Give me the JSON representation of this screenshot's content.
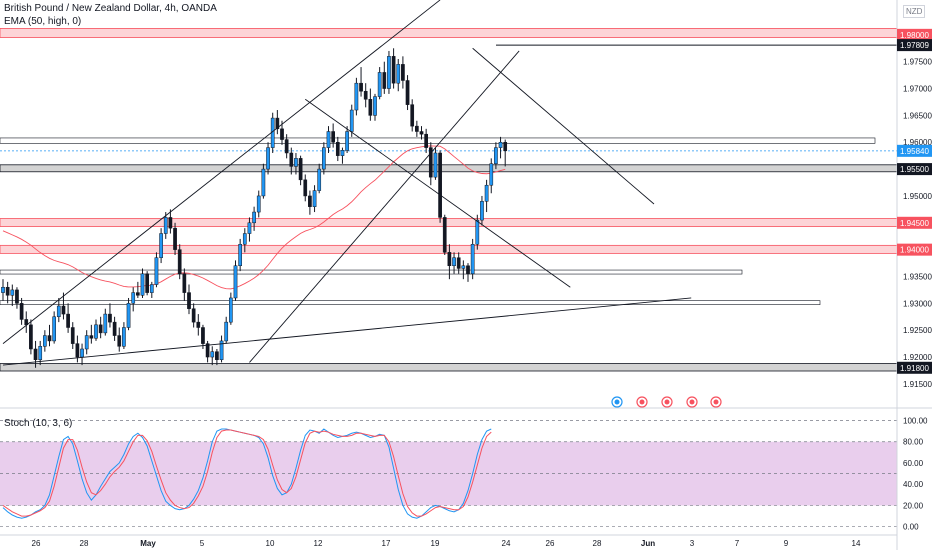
{
  "header": {
    "symbol_line": "British Pound / New Zealand Dollar, 4h, OANDA",
    "ema_label": "EMA (50, high, 0)",
    "currency": "NZD"
  },
  "stoch_label": "Stoch (10, 3, 6)",
  "chart_data": [
    {
      "type": "candlestick",
      "title": "British Pound / New Zealand Dollar, 4h, OANDA",
      "indicator": "EMA (50, high, 0)",
      "ylim": [
        1.912,
        1.985
      ],
      "yticks": [
        1.915,
        1.92,
        1.925,
        1.93,
        1.935,
        1.94,
        1.945,
        1.95,
        1.955,
        1.96,
        1.965,
        1.97,
        1.975,
        1.98
      ],
      "yticks_labels": [
        "1.91500",
        "1.92000",
        "1.92500",
        "1.93000",
        "1.93500",
        "1.94000",
        "1.94500",
        "1.95000",
        "1.95500",
        "1.96000",
        "1.96500",
        "1.97000",
        "1.97500",
        "1.98000"
      ],
      "x_labels": [
        "26",
        "28",
        "May",
        "5",
        "10",
        "12",
        "17",
        "19",
        "24",
        "26",
        "28",
        "Jun",
        "3",
        "7",
        "9",
        "14"
      ],
      "price_labels": [
        {
          "value": 1.98,
          "text": "1.98000",
          "color": "#f7525f"
        },
        {
          "value": 1.97809,
          "text": "1.97809",
          "color": "#131722"
        },
        {
          "value": 1.9584,
          "text": "1.95840",
          "color": "#2196f3"
        },
        {
          "value": 1.955,
          "text": "1.95500",
          "color": "#131722"
        },
        {
          "value": 1.945,
          "text": "1.94500",
          "color": "#f7525f"
        },
        {
          "value": 1.94,
          "text": "1.94000",
          "color": "#f7525f"
        },
        {
          "value": 1.918,
          "text": "1.91800",
          "color": "#131722"
        }
      ],
      "zones": [
        {
          "from": 1.9795,
          "to": 1.9812,
          "kind": "resistance"
        },
        {
          "from": 1.9545,
          "to": 1.9558,
          "kind": "support"
        },
        {
          "from": 1.9443,
          "to": 1.9458,
          "kind": "resistance"
        },
        {
          "from": 1.9393,
          "to": 1.9408,
          "kind": "resistance"
        },
        {
          "from": 1.9174,
          "to": 1.9188,
          "kind": "support"
        }
      ],
      "boxes": [
        {
          "from": 1.9598,
          "to": 1.9608
        },
        {
          "from": 1.9355,
          "to": 1.9362
        },
        {
          "from": 1.9298,
          "to": 1.9305
        }
      ],
      "candles": [
        {
          "o": 1.932,
          "h": 1.9345,
          "l": 1.9305,
          "c": 1.933
        },
        {
          "o": 1.933,
          "h": 1.934,
          "l": 1.93,
          "c": 1.9315
        },
        {
          "o": 1.9315,
          "h": 1.9335,
          "l": 1.9295,
          "c": 1.9325
        },
        {
          "o": 1.9325,
          "h": 1.933,
          "l": 1.929,
          "c": 1.93
        },
        {
          "o": 1.93,
          "h": 1.931,
          "l": 1.926,
          "c": 1.927
        },
        {
          "o": 1.927,
          "h": 1.9285,
          "l": 1.9245,
          "c": 1.926
        },
        {
          "o": 1.926,
          "h": 1.927,
          "l": 1.9205,
          "c": 1.9215
        },
        {
          "o": 1.9215,
          "h": 1.923,
          "l": 1.918,
          "c": 1.9195
        },
        {
          "o": 1.9195,
          "h": 1.923,
          "l": 1.9185,
          "c": 1.922
        },
        {
          "o": 1.922,
          "h": 1.925,
          "l": 1.921,
          "c": 1.924
        },
        {
          "o": 1.924,
          "h": 1.926,
          "l": 1.922,
          "c": 1.923
        },
        {
          "o": 1.923,
          "h": 1.9285,
          "l": 1.9225,
          "c": 1.9275
        },
        {
          "o": 1.9275,
          "h": 1.931,
          "l": 1.9265,
          "c": 1.9295
        },
        {
          "o": 1.9295,
          "h": 1.932,
          "l": 1.927,
          "c": 1.928
        },
        {
          "o": 1.928,
          "h": 1.93,
          "l": 1.9245,
          "c": 1.9255
        },
        {
          "o": 1.9255,
          "h": 1.9265,
          "l": 1.9215,
          "c": 1.9225
        },
        {
          "o": 1.9225,
          "h": 1.924,
          "l": 1.919,
          "c": 1.92
        },
        {
          "o": 1.92,
          "h": 1.9225,
          "l": 1.9185,
          "c": 1.9215
        },
        {
          "o": 1.9215,
          "h": 1.925,
          "l": 1.9205,
          "c": 1.924
        },
        {
          "o": 1.924,
          "h": 1.926,
          "l": 1.9225,
          "c": 1.9235
        },
        {
          "o": 1.9235,
          "h": 1.927,
          "l": 1.923,
          "c": 1.926
        },
        {
          "o": 1.926,
          "h": 1.9275,
          "l": 1.9235,
          "c": 1.9245
        },
        {
          "o": 1.9245,
          "h": 1.929,
          "l": 1.924,
          "c": 1.928
        },
        {
          "o": 1.928,
          "h": 1.93,
          "l": 1.9255,
          "c": 1.9265
        },
        {
          "o": 1.9265,
          "h": 1.9275,
          "l": 1.923,
          "c": 1.924
        },
        {
          "o": 1.924,
          "h": 1.9255,
          "l": 1.921,
          "c": 1.922
        },
        {
          "o": 1.922,
          "h": 1.9265,
          "l": 1.9215,
          "c": 1.9255
        },
        {
          "o": 1.9255,
          "h": 1.931,
          "l": 1.925,
          "c": 1.93
        },
        {
          "o": 1.93,
          "h": 1.933,
          "l": 1.9285,
          "c": 1.932
        },
        {
          "o": 1.932,
          "h": 1.934,
          "l": 1.931,
          "c": 1.9315
        },
        {
          "o": 1.9315,
          "h": 1.9365,
          "l": 1.931,
          "c": 1.9355
        },
        {
          "o": 1.9355,
          "h": 1.936,
          "l": 1.9315,
          "c": 1.932
        },
        {
          "o": 1.932,
          "h": 1.934,
          "l": 1.931,
          "c": 1.9335
        },
        {
          "o": 1.9335,
          "h": 1.9395,
          "l": 1.933,
          "c": 1.9385
        },
        {
          "o": 1.9385,
          "h": 1.944,
          "l": 1.9375,
          "c": 1.943
        },
        {
          "o": 1.943,
          "h": 1.947,
          "l": 1.942,
          "c": 1.946
        },
        {
          "o": 1.946,
          "h": 1.9475,
          "l": 1.943,
          "c": 1.944
        },
        {
          "o": 1.944,
          "h": 1.945,
          "l": 1.939,
          "c": 1.94
        },
        {
          "o": 1.94,
          "h": 1.941,
          "l": 1.9345,
          "c": 1.9355
        },
        {
          "o": 1.9355,
          "h": 1.9365,
          "l": 1.9305,
          "c": 1.932
        },
        {
          "o": 1.932,
          "h": 1.9335,
          "l": 1.928,
          "c": 1.929
        },
        {
          "o": 1.929,
          "h": 1.93,
          "l": 1.9255,
          "c": 1.9265
        },
        {
          "o": 1.9265,
          "h": 1.928,
          "l": 1.924,
          "c": 1.9255
        },
        {
          "o": 1.9255,
          "h": 1.926,
          "l": 1.9215,
          "c": 1.9225
        },
        {
          "o": 1.9225,
          "h": 1.923,
          "l": 1.919,
          "c": 1.92
        },
        {
          "o": 1.92,
          "h": 1.922,
          "l": 1.9185,
          "c": 1.921
        },
        {
          "o": 1.921,
          "h": 1.9215,
          "l": 1.9185,
          "c": 1.9195
        },
        {
          "o": 1.9195,
          "h": 1.924,
          "l": 1.919,
          "c": 1.923
        },
        {
          "o": 1.923,
          "h": 1.9275,
          "l": 1.9225,
          "c": 1.9265
        },
        {
          "o": 1.9265,
          "h": 1.932,
          "l": 1.926,
          "c": 1.931
        },
        {
          "o": 1.931,
          "h": 1.938,
          "l": 1.9305,
          "c": 1.937
        },
        {
          "o": 1.937,
          "h": 1.942,
          "l": 1.936,
          "c": 1.941
        },
        {
          "o": 1.941,
          "h": 1.944,
          "l": 1.9395,
          "c": 1.943
        },
        {
          "o": 1.943,
          "h": 1.946,
          "l": 1.9415,
          "c": 1.945
        },
        {
          "o": 1.945,
          "h": 1.948,
          "l": 1.9435,
          "c": 1.947
        },
        {
          "o": 1.947,
          "h": 1.951,
          "l": 1.946,
          "c": 1.95
        },
        {
          "o": 1.95,
          "h": 1.956,
          "l": 1.9495,
          "c": 1.955
        },
        {
          "o": 1.955,
          "h": 1.96,
          "l": 1.954,
          "c": 1.959
        },
        {
          "o": 1.959,
          "h": 1.9655,
          "l": 1.958,
          "c": 1.9645
        },
        {
          "o": 1.9645,
          "h": 1.966,
          "l": 1.9615,
          "c": 1.9625
        },
        {
          "o": 1.9625,
          "h": 1.964,
          "l": 1.9595,
          "c": 1.9605
        },
        {
          "o": 1.9605,
          "h": 1.9615,
          "l": 1.957,
          "c": 1.958
        },
        {
          "o": 1.958,
          "h": 1.959,
          "l": 1.954,
          "c": 1.9555
        },
        {
          "o": 1.9555,
          "h": 1.958,
          "l": 1.954,
          "c": 1.957
        },
        {
          "o": 1.957,
          "h": 1.9575,
          "l": 1.952,
          "c": 1.953
        },
        {
          "o": 1.953,
          "h": 1.954,
          "l": 1.949,
          "c": 1.95
        },
        {
          "o": 1.95,
          "h": 1.951,
          "l": 1.9465,
          "c": 1.948
        },
        {
          "o": 1.948,
          "h": 1.952,
          "l": 1.947,
          "c": 1.951
        },
        {
          "o": 1.951,
          "h": 1.956,
          "l": 1.9505,
          "c": 1.955
        },
        {
          "o": 1.955,
          "h": 1.96,
          "l": 1.954,
          "c": 1.959
        },
        {
          "o": 1.959,
          "h": 1.963,
          "l": 1.958,
          "c": 1.962
        },
        {
          "o": 1.962,
          "h": 1.9635,
          "l": 1.959,
          "c": 1.96
        },
        {
          "o": 1.96,
          "h": 1.961,
          "l": 1.9565,
          "c": 1.9575
        },
        {
          "o": 1.9575,
          "h": 1.959,
          "l": 1.956,
          "c": 1.9585
        },
        {
          "o": 1.9585,
          "h": 1.963,
          "l": 1.958,
          "c": 1.962
        },
        {
          "o": 1.962,
          "h": 1.967,
          "l": 1.961,
          "c": 1.966
        },
        {
          "o": 1.966,
          "h": 1.972,
          "l": 1.965,
          "c": 1.971
        },
        {
          "o": 1.971,
          "h": 1.974,
          "l": 1.9685,
          "c": 1.9695
        },
        {
          "o": 1.9695,
          "h": 1.971,
          "l": 1.9665,
          "c": 1.968
        },
        {
          "o": 1.968,
          "h": 1.97,
          "l": 1.964,
          "c": 1.965
        },
        {
          "o": 1.965,
          "h": 1.969,
          "l": 1.964,
          "c": 1.9685
        },
        {
          "o": 1.9685,
          "h": 1.974,
          "l": 1.968,
          "c": 1.973
        },
        {
          "o": 1.973,
          "h": 1.975,
          "l": 1.969,
          "c": 1.97
        },
        {
          "o": 1.97,
          "h": 1.977,
          "l": 1.969,
          "c": 1.976
        },
        {
          "o": 1.976,
          "h": 1.9775,
          "l": 1.97,
          "c": 1.971
        },
        {
          "o": 1.971,
          "h": 1.9755,
          "l": 1.9695,
          "c": 1.9745
        },
        {
          "o": 1.9745,
          "h": 1.976,
          "l": 1.97,
          "c": 1.9715
        },
        {
          "o": 1.9715,
          "h": 1.9725,
          "l": 1.966,
          "c": 1.967
        },
        {
          "o": 1.967,
          "h": 1.968,
          "l": 1.962,
          "c": 1.963
        },
        {
          "o": 1.963,
          "h": 1.964,
          "l": 1.961,
          "c": 1.962
        },
        {
          "o": 1.962,
          "h": 1.963,
          "l": 1.9605,
          "c": 1.9615
        },
        {
          "o": 1.9615,
          "h": 1.9625,
          "l": 1.958,
          "c": 1.959
        },
        {
          "o": 1.959,
          "h": 1.96,
          "l": 1.952,
          "c": 1.9535
        },
        {
          "o": 1.9535,
          "h": 1.959,
          "l": 1.953,
          "c": 1.958
        },
        {
          "o": 1.958,
          "h": 1.9585,
          "l": 1.945,
          "c": 1.946
        },
        {
          "o": 1.946,
          "h": 1.9465,
          "l": 1.939,
          "c": 1.9395
        },
        {
          "o": 1.9395,
          "h": 1.941,
          "l": 1.9345,
          "c": 1.937
        },
        {
          "o": 1.937,
          "h": 1.9395,
          "l": 1.9355,
          "c": 1.9385
        },
        {
          "o": 1.9385,
          "h": 1.9395,
          "l": 1.9355,
          "c": 1.9365
        },
        {
          "o": 1.9365,
          "h": 1.938,
          "l": 1.9345,
          "c": 1.937
        },
        {
          "o": 1.937,
          "h": 1.9375,
          "l": 1.934,
          "c": 1.9355
        },
        {
          "o": 1.9355,
          "h": 1.942,
          "l": 1.9345,
          "c": 1.941
        },
        {
          "o": 1.941,
          "h": 1.9465,
          "l": 1.94,
          "c": 1.9455
        },
        {
          "o": 1.9455,
          "h": 1.95,
          "l": 1.9445,
          "c": 1.949
        },
        {
          "o": 1.949,
          "h": 1.953,
          "l": 1.947,
          "c": 1.952
        },
        {
          "o": 1.952,
          "h": 1.957,
          "l": 1.9505,
          "c": 1.956
        },
        {
          "o": 1.956,
          "h": 1.96,
          "l": 1.955,
          "c": 1.959
        },
        {
          "o": 1.959,
          "h": 1.961,
          "l": 1.957,
          "c": 1.96
        },
        {
          "o": 1.96,
          "h": 1.9605,
          "l": 1.9555,
          "c": 1.9584
        }
      ],
      "trendlines": [
        {
          "x1": 0,
          "y1": 1.9225,
          "x2": 94,
          "y2": 1.9865,
          "role": "upper-channel"
        },
        {
          "x1": 53,
          "y1": 1.919,
          "x2": 111,
          "y2": 1.977,
          "role": "lower-channel"
        },
        {
          "x1": 0,
          "y1": 1.9185,
          "x2": 148,
          "y2": 1.931,
          "role": "long-support"
        },
        {
          "x1": 65,
          "y1": 1.968,
          "x2": 122,
          "y2": 1.933,
          "role": "descending-channel-lower"
        },
        {
          "x1": 101,
          "y1": 1.9775,
          "x2": 140,
          "y2": 1.9485,
          "role": "descending-channel-upper"
        }
      ]
    },
    {
      "type": "line",
      "title": "Stoch (10, 3, 6)",
      "ylim": [
        -5,
        108
      ],
      "yticks_labels": [
        "0.00",
        "20.00",
        "40.00",
        "60.00",
        "80.00",
        "100.00"
      ],
      "bands": {
        "upper": 80,
        "lower": 20,
        "fill": "#e1bee7"
      },
      "series": [
        {
          "color": "#2196f3",
          "values": [
            18,
            14,
            11,
            9,
            8,
            9,
            11,
            14,
            16,
            20,
            30,
            48,
            66,
            82,
            85,
            78,
            62,
            45,
            32,
            25,
            30,
            38,
            45,
            52,
            56,
            60,
            68,
            78,
            85,
            88,
            84,
            76,
            62,
            48,
            34,
            24,
            20,
            17,
            16,
            17,
            20,
            26,
            34,
            46,
            62,
            80,
            90,
            92,
            92,
            91,
            90,
            89,
            88,
            87,
            86,
            84,
            78,
            65,
            48,
            36,
            30,
            32,
            40,
            55,
            72,
            86,
            91,
            90,
            88,
            92,
            89,
            86,
            84,
            85,
            86,
            88,
            89,
            88,
            86,
            84,
            85,
            87,
            86,
            75,
            55,
            35,
            20,
            12,
            9,
            8,
            10,
            14,
            18,
            20,
            19,
            17,
            15,
            14,
            16,
            22,
            34,
            50,
            68,
            82,
            90,
            92
          ]
        },
        {
          "color": "#f7525f",
          "values": [
            20,
            17,
            14,
            12,
            10,
            10,
            11,
            13,
            15,
            18,
            24,
            38,
            56,
            74,
            82,
            82,
            72,
            56,
            42,
            32,
            30,
            34,
            40,
            47,
            52,
            56,
            62,
            71,
            80,
            86,
            86,
            81,
            71,
            57,
            44,
            32,
            25,
            20,
            18,
            17,
            18,
            22,
            29,
            38,
            52,
            70,
            84,
            90,
            91,
            91,
            90,
            89,
            88,
            87,
            86,
            85,
            82,
            73,
            58,
            44,
            35,
            32,
            36,
            47,
            63,
            79,
            88,
            90,
            89,
            90,
            89,
            87,
            86,
            85,
            85,
            86,
            88,
            88,
            87,
            86,
            85,
            86,
            86,
            80,
            66,
            48,
            31,
            19,
            13,
            10,
            10,
            12,
            15,
            18,
            19,
            18,
            17,
            16,
            16,
            19,
            28,
            42,
            58,
            74,
            85,
            89
          ]
        }
      ]
    }
  ]
}
